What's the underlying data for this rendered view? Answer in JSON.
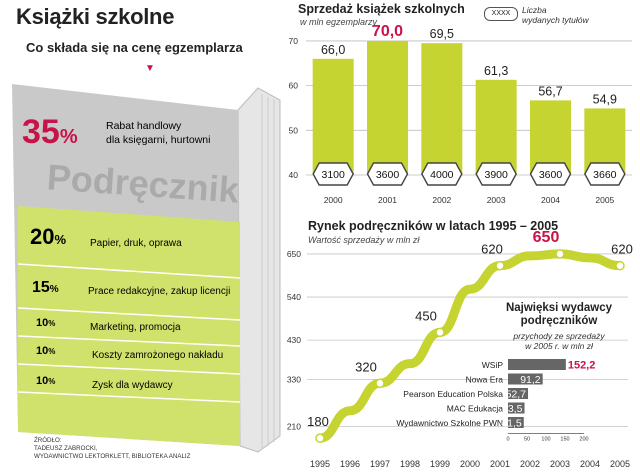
{
  "header": {
    "title": "Książki szkolne",
    "breakdown_subtitle": "Co składa się na cenę egzemplarza",
    "arrow_glyph": "▼"
  },
  "book": {
    "cover_word": "Podręcznik",
    "colors": {
      "cover": "#c9c9c9",
      "band_green": "#d0e26c",
      "accent_pink": "#c9124a"
    },
    "items": [
      {
        "pct": "35",
        "unit": "%",
        "label": "Rabat handlowy dla księgarni, hurtowni",
        "share": 35
      },
      {
        "pct": "20",
        "unit": "%",
        "label": "Papier, druk, oprawa",
        "share": 20
      },
      {
        "pct": "15",
        "unit": "%",
        "label": "Prace redakcyjne, zakup licencji",
        "share": 15
      },
      {
        "pct": "10",
        "unit": "%",
        "label": "Marketing, promocja",
        "share": 10
      },
      {
        "pct": "10",
        "unit": "%",
        "label": "Koszty zamrożonego nakładu",
        "share": 10
      },
      {
        "pct": "10",
        "unit": "%",
        "label": "Zysk dla wydawcy",
        "share": 10
      }
    ]
  },
  "source": {
    "label": "ŹRÓDŁO:",
    "line1": "TADEUSZ ZABROCKI,",
    "line2": "WYDAWNICTWO LEKTORKLETT, BIBLIOTEKA ANALIZ"
  },
  "legend": {
    "box_text": "XXXX",
    "label_line1": "Liczba",
    "label_line2": "wydanych tytułów"
  },
  "inset_text": {
    "title_line1": "Najwięksi wydawcy",
    "title_line2": "podręczników",
    "sub_line1": "przychody ze sprzedaży",
    "sub_line2": "w 2005 r. w mln zł"
  },
  "chart_data": [
    {
      "type": "bar",
      "title": "Sprzedaż książek szkolnych",
      "subtitle": "w mln egzemplarzy",
      "categories": [
        "2000",
        "2001",
        "2002",
        "2003",
        "2004",
        "2005"
      ],
      "values": [
        66.0,
        70.0,
        69.5,
        61.3,
        56.7,
        54.9
      ],
      "value_labels": [
        "66,0",
        "70,0",
        "69,5",
        "61,3",
        "56,7",
        "54,9"
      ],
      "highlight_index": 1,
      "titles_published": [
        "3100",
        "3600",
        "4000",
        "3900",
        "3600",
        "3660"
      ],
      "yticks": [
        40,
        50,
        60,
        70
      ],
      "ylim": [
        40,
        72
      ],
      "grid": true,
      "colors": {
        "bar": "#c5d430",
        "highlight": "#c9124a"
      }
    },
    {
      "type": "line",
      "title": "Rynek podręczników w latach 1995 – 2005",
      "subtitle": "Wartość sprzedaży w mln zł",
      "x": [
        "1995",
        "1996",
        "1997",
        "1998",
        "1999",
        "2000",
        "2001",
        "2002",
        "2003",
        "2004",
        "2005"
      ],
      "series": [
        {
          "values": [
            180,
            250,
            320,
            370,
            450,
            560,
            620,
            645,
            650,
            640,
            620
          ],
          "labeled_points": [
            {
              "index": 0,
              "label": "180"
            },
            {
              "index": 2,
              "label": "320"
            },
            {
              "index": 4,
              "label": "450"
            },
            {
              "index": 6,
              "label": "620"
            },
            {
              "index": 8,
              "label": "650",
              "highlight": true
            },
            {
              "index": 10,
              "label": "620"
            }
          ]
        }
      ],
      "yticks": [
        210,
        330,
        430,
        540,
        650
      ],
      "ylim": [
        160,
        660
      ],
      "grid": true,
      "colors": {
        "line": "#c5d430",
        "highlight": "#c9124a"
      }
    },
    {
      "type": "bar",
      "orientation": "horizontal",
      "categories": [
        "WSiP",
        "Nowa Era",
        "Pearson Education Polska",
        "MAC Edukacja",
        "Wydawnictwo Szkolne PWN"
      ],
      "values": [
        152.2,
        91.2,
        52.7,
        43.5,
        41.5
      ],
      "value_labels": [
        "152,2",
        "91,2",
        "52,7",
        "43,5",
        "41,5"
      ],
      "highlight_index": 0,
      "xticks": [
        0,
        50,
        100,
        150,
        200
      ],
      "xlim": [
        0,
        200
      ],
      "colors": {
        "bar": "#666666",
        "highlight": "#c9124a"
      }
    }
  ]
}
